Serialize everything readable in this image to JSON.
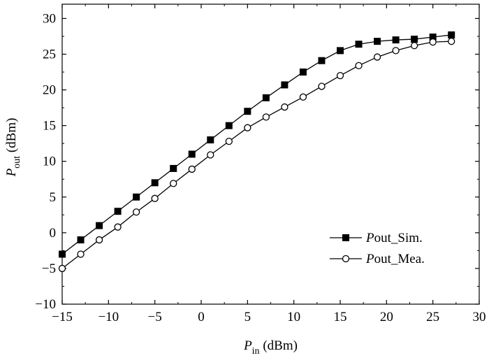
{
  "chart_data": {
    "type": "line",
    "xlabel": {
      "main": "P",
      "sub": "in",
      "unit": " (dBm)"
    },
    "ylabel": {
      "main": "P",
      "sub": "out",
      "unit": " (dBm)"
    },
    "xlim": [
      -15,
      30
    ],
    "ylim": [
      -10,
      32
    ],
    "xticks": [
      -15,
      -10,
      -5,
      0,
      5,
      10,
      15,
      20,
      25,
      30
    ],
    "yticks": [
      -10,
      -5,
      0,
      5,
      10,
      15,
      20,
      25,
      30
    ],
    "xtick_labels": [
      "−15",
      "−10",
      "−5",
      "0",
      "5",
      "10",
      "15",
      "20",
      "25",
      "30"
    ],
    "ytick_labels": [
      "−10",
      "−5",
      "0",
      "5",
      "10",
      "15",
      "20",
      "25",
      "30"
    ],
    "legend_position": "lower-right",
    "series": [
      {
        "name": "Pout_Sim.",
        "name_italic": "P",
        "name_rest": "out_Sim.",
        "marker": "filled-square",
        "color": "#000000",
        "x": [
          -15,
          -13,
          -11,
          -9,
          -7,
          -5,
          -3,
          -1,
          1,
          3,
          5,
          7,
          9,
          11,
          13,
          15,
          17,
          19,
          21,
          23,
          25,
          27
        ],
        "y": [
          -3,
          -1,
          1,
          3,
          5,
          7,
          9,
          11,
          13,
          15,
          17,
          18.9,
          20.7,
          22.5,
          24.1,
          25.5,
          26.4,
          26.8,
          27.0,
          27.1,
          27.4,
          27.7
        ]
      },
      {
        "name": "Pout_Mea.",
        "name_italic": "P",
        "name_rest": "out_Mea.",
        "marker": "open-circle",
        "color": "#000000",
        "x": [
          -15,
          -13,
          -11,
          -9,
          -7,
          -5,
          -3,
          -1,
          1,
          3,
          5,
          7,
          9,
          11,
          13,
          15,
          17,
          19,
          21,
          23,
          25,
          27
        ],
        "y": [
          -5,
          -3,
          -1,
          0.8,
          2.9,
          4.8,
          6.9,
          8.9,
          10.9,
          12.8,
          14.7,
          16.2,
          17.6,
          19.0,
          20.5,
          22.0,
          23.4,
          24.6,
          25.5,
          26.2,
          26.7,
          26.8
        ]
      }
    ]
  }
}
